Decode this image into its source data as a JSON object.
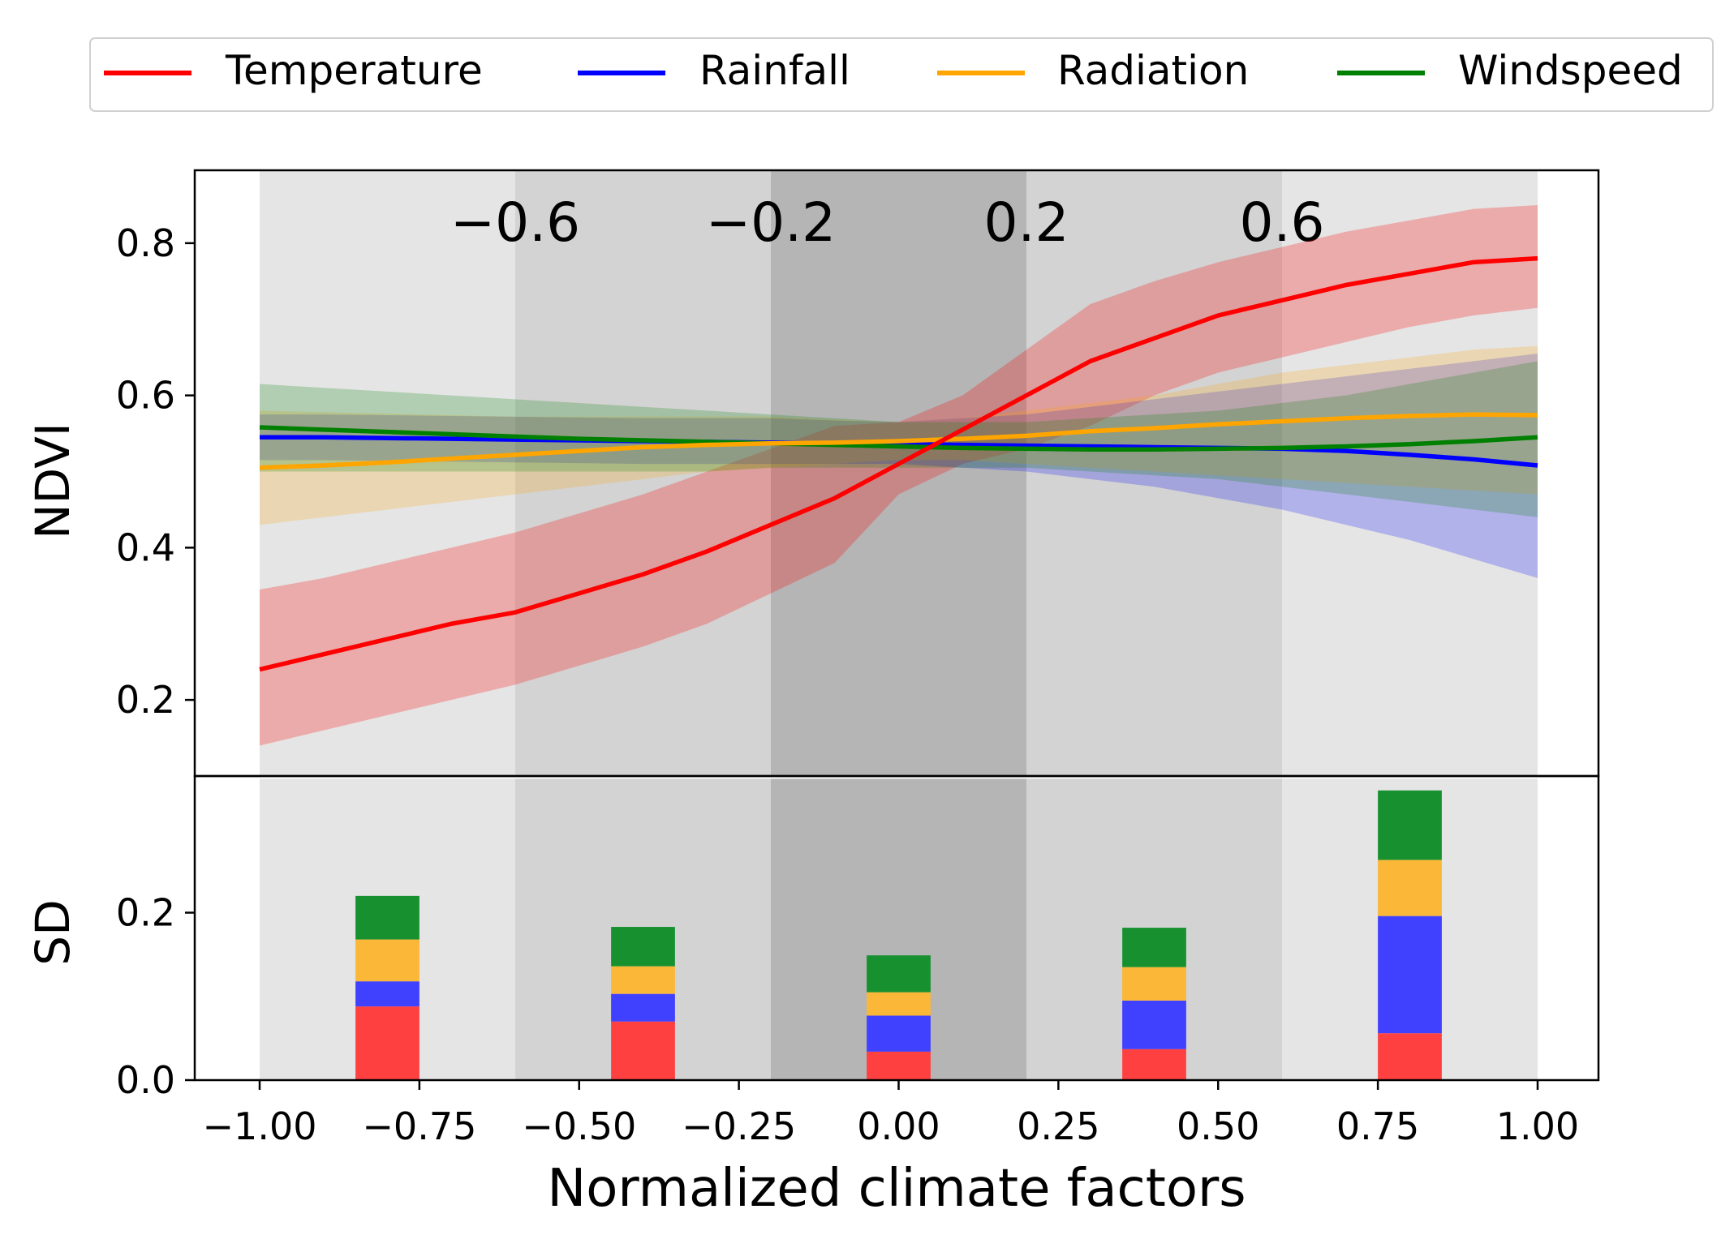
{
  "chart_data": {
    "type": "line",
    "legend": {
      "placement": "top",
      "entries": [
        {
          "name": "Temperature",
          "color": "#ff0000"
        },
        {
          "name": "Rainfall",
          "color": "#0000ff"
        },
        {
          "name": "Radiation",
          "color": "#ffa500"
        },
        {
          "name": "Windspeed",
          "color": "#008000"
        }
      ]
    },
    "xlabel": "Normalized climate factors",
    "xlim": [
      -1.1,
      1.1
    ],
    "xticks": [
      -1.0,
      -0.75,
      -0.5,
      -0.25,
      0.0,
      0.25,
      0.5,
      0.75,
      1.0
    ],
    "xtick_labels": [
      "−1.00",
      "−0.75",
      "−0.50",
      "−0.25",
      "0.00",
      "0.25",
      "0.50",
      "0.75",
      "1.00"
    ],
    "bands": [
      {
        "from": -1.0,
        "to": -0.6,
        "center_label": "−0.6",
        "shade": "#e5e5e5"
      },
      {
        "from": -0.6,
        "to": -0.2,
        "center_label": "−0.2",
        "shade": "#d3d3d3"
      },
      {
        "from": -0.2,
        "to": 0.2,
        "center_label": "0.2",
        "shade": "#b5b5b5"
      },
      {
        "from": 0.2,
        "to": 0.6,
        "center_label": "0.6",
        "shade": "#d3d3d3"
      },
      {
        "from": 0.6,
        "to": 1.0,
        "center_label": "",
        "shade": "#e5e5e5"
      }
    ],
    "top_panel": {
      "ylabel": "NDVI",
      "ylim": [
        0.1,
        0.9
      ],
      "yticks": [
        0.2,
        0.4,
        0.6,
        0.8
      ],
      "ytick_labels": [
        "0.2",
        "0.4",
        "0.6",
        "0.8"
      ],
      "x": [
        -1.0,
        -0.9,
        -0.8,
        -0.7,
        -0.6,
        -0.5,
        -0.4,
        -0.3,
        -0.2,
        -0.1,
        0.0,
        0.1,
        0.2,
        0.3,
        0.4,
        0.5,
        0.6,
        0.7,
        0.8,
        0.9,
        1.0
      ],
      "series": [
        {
          "name": "Temperature",
          "color": "#ff0000",
          "values": [
            0.24,
            0.26,
            0.28,
            0.3,
            0.315,
            0.34,
            0.365,
            0.395,
            0.43,
            0.465,
            0.51,
            0.555,
            0.6,
            0.645,
            0.675,
            0.705,
            0.725,
            0.745,
            0.76,
            0.775,
            0.78
          ],
          "lower": [
            0.14,
            0.16,
            0.18,
            0.2,
            0.22,
            0.245,
            0.27,
            0.3,
            0.34,
            0.38,
            0.47,
            0.51,
            0.53,
            0.56,
            0.6,
            0.63,
            0.65,
            0.67,
            0.69,
            0.705,
            0.715
          ],
          "upper": [
            0.345,
            0.36,
            0.38,
            0.4,
            0.42,
            0.445,
            0.47,
            0.5,
            0.53,
            0.56,
            0.565,
            0.6,
            0.66,
            0.72,
            0.75,
            0.775,
            0.795,
            0.815,
            0.83,
            0.845,
            0.85
          ]
        },
        {
          "name": "Rainfall",
          "color": "#0000ff",
          "values": [
            0.545,
            0.545,
            0.544,
            0.543,
            0.542,
            0.541,
            0.54,
            0.539,
            0.538,
            0.537,
            0.536,
            0.535,
            0.534,
            0.533,
            0.532,
            0.531,
            0.53,
            0.527,
            0.522,
            0.516,
            0.508
          ],
          "lower": [
            0.515,
            0.515,
            0.514,
            0.513,
            0.512,
            0.511,
            0.51,
            0.51,
            0.51,
            0.51,
            0.51,
            0.505,
            0.5,
            0.49,
            0.48,
            0.465,
            0.45,
            0.43,
            0.41,
            0.385,
            0.36
          ],
          "upper": [
            0.575,
            0.575,
            0.574,
            0.573,
            0.572,
            0.571,
            0.57,
            0.57,
            0.57,
            0.567,
            0.565,
            0.57,
            0.575,
            0.585,
            0.595,
            0.605,
            0.615,
            0.625,
            0.635,
            0.645,
            0.655
          ]
        },
        {
          "name": "Radiation",
          "color": "#ffa500",
          "values": [
            0.505,
            0.508,
            0.512,
            0.517,
            0.522,
            0.527,
            0.532,
            0.535,
            0.537,
            0.538,
            0.54,
            0.543,
            0.547,
            0.553,
            0.557,
            0.562,
            0.566,
            0.57,
            0.573,
            0.575,
            0.574
          ],
          "lower": [
            0.43,
            0.44,
            0.45,
            0.46,
            0.47,
            0.48,
            0.49,
            0.5,
            0.505,
            0.51,
            0.515,
            0.515,
            0.51,
            0.505,
            0.5,
            0.495,
            0.49,
            0.485,
            0.48,
            0.475,
            0.47
          ],
          "upper": [
            0.58,
            0.578,
            0.576,
            0.574,
            0.572,
            0.572,
            0.572,
            0.572,
            0.572,
            0.568,
            0.565,
            0.57,
            0.58,
            0.59,
            0.6,
            0.615,
            0.63,
            0.64,
            0.65,
            0.66,
            0.665
          ]
        },
        {
          "name": "Windspeed",
          "color": "#008000",
          "values": [
            0.558,
            0.555,
            0.552,
            0.549,
            0.546,
            0.543,
            0.541,
            0.539,
            0.537,
            0.535,
            0.533,
            0.531,
            0.53,
            0.529,
            0.529,
            0.53,
            0.531,
            0.533,
            0.536,
            0.54,
            0.545
          ],
          "lower": [
            0.5,
            0.5,
            0.5,
            0.5,
            0.5,
            0.5,
            0.5,
            0.5,
            0.505,
            0.505,
            0.505,
            0.505,
            0.505,
            0.5,
            0.495,
            0.49,
            0.48,
            0.47,
            0.46,
            0.45,
            0.44
          ],
          "upper": [
            0.615,
            0.61,
            0.605,
            0.6,
            0.595,
            0.59,
            0.585,
            0.58,
            0.575,
            0.57,
            0.565,
            0.565,
            0.565,
            0.57,
            0.575,
            0.58,
            0.59,
            0.6,
            0.615,
            0.63,
            0.645
          ]
        }
      ]
    },
    "bottom_panel": {
      "type": "stacked_bar",
      "ylabel": "SD",
      "ylim": [
        0.0,
        0.36
      ],
      "yticks": [
        0.0,
        0.2
      ],
      "ytick_labels": [
        "0.0",
        "0.2"
      ],
      "bar_width": 0.1,
      "categories": [
        -0.8,
        -0.4,
        0.0,
        0.4,
        0.8
      ],
      "series": [
        {
          "name": "Temperature",
          "color": "#ff4040",
          "values": [
            0.088,
            0.07,
            0.034,
            0.037,
            0.056
          ]
        },
        {
          "name": "Rainfall",
          "color": "#4040ff",
          "values": [
            0.03,
            0.033,
            0.043,
            0.058,
            0.14
          ]
        },
        {
          "name": "Radiation",
          "color": "#fbb738",
          "values": [
            0.05,
            0.033,
            0.028,
            0.04,
            0.067
          ]
        },
        {
          "name": "Windspeed",
          "color": "#179130",
          "values": [
            0.052,
            0.047,
            0.044,
            0.047,
            0.083
          ]
        }
      ]
    }
  }
}
